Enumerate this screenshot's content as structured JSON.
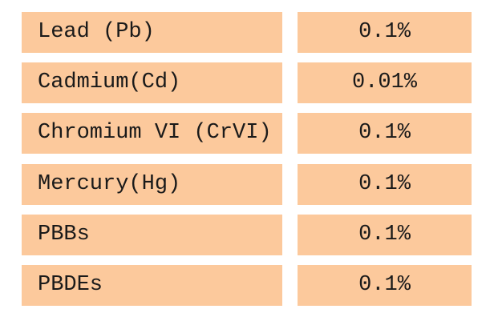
{
  "table": {
    "rows": [
      [
        "Lead (Pb)",
        "0.1%"
      ],
      [
        "Cadmium(Cd)",
        "0.01%"
      ],
      [
        "Chromium VI (CrVI)",
        "0.1%"
      ],
      [
        "Mercury(Hg)",
        "0.1%"
      ],
      [
        "PBBs",
        "0.1%"
      ],
      [
        "PBDEs",
        "0.1%"
      ]
    ]
  }
}
